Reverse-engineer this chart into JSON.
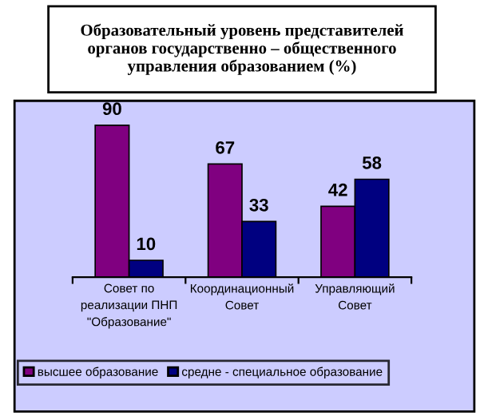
{
  "chart_data": {
    "type": "bar",
    "title": "Образовательный уровень представителей органов государственно – общественного управления образованием (%)",
    "categories": [
      "Совет по реализации ПНП \"Образование\"",
      "Координационный Совет",
      "Управляющий Совет"
    ],
    "series": [
      {
        "name": "высшее образование",
        "color": "#800080",
        "values": [
          90,
          67,
          42
        ]
      },
      {
        "name": "средне - специальное образование",
        "color": "#000080",
        "values": [
          10,
          33,
          58
        ]
      }
    ],
    "data_labels": true,
    "legend": "bottom"
  }
}
